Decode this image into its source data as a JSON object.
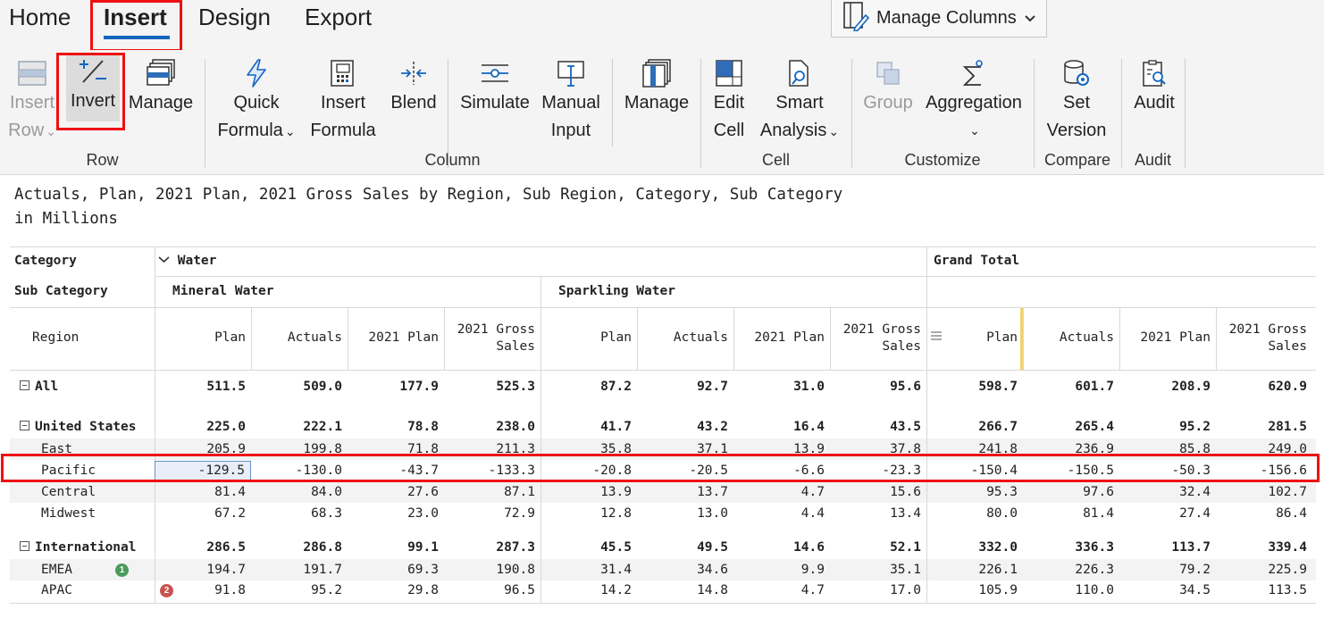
{
  "tabs": [
    "Home",
    "Insert",
    "Design",
    "Export"
  ],
  "active_tab": "Insert",
  "manage_columns_label": "Manage Columns",
  "ribbon": {
    "insert_row": [
      "Insert",
      "Row"
    ],
    "invert": "Invert",
    "manage_row": "Manage",
    "quick_formula": [
      "Quick",
      "Formula"
    ],
    "insert_formula": [
      "Insert",
      "Formula"
    ],
    "blend": "Blend",
    "simulate": "Simulate",
    "manual_input": [
      "Manual",
      "Input"
    ],
    "manage_column": "Manage",
    "edit_cell": [
      "Edit",
      "Cell"
    ],
    "smart_analysis": [
      "Smart",
      "Analysis"
    ],
    "group": "Group",
    "aggregation": "Aggregation",
    "set_version": [
      "Set",
      "Version"
    ],
    "audit": "Audit",
    "groups": {
      "row": "Row",
      "column": "Column",
      "cell": "Cell",
      "customize": "Customize",
      "compare": "Compare",
      "audit": "Audit"
    }
  },
  "report_title": "Actuals, Plan, 2021 Plan, 2021 Gross Sales by Region, Sub Region, Category, Sub Category",
  "report_units": "in Millions",
  "grid": {
    "row_headers": {
      "category": "Category",
      "sub_category": "Sub Category",
      "region": "Region"
    },
    "category_value": "Water",
    "grand_total": "Grand Total",
    "sub_categories": [
      "Mineral Water",
      "Sparkling Water"
    ],
    "measures": [
      "Plan",
      "Actuals",
      "2021 Plan",
      [
        "2021 Gross",
        "Sales"
      ]
    ],
    "rows": [
      {
        "label": "All",
        "bold": true,
        "expander": true,
        "values": [
          "511.5",
          "509.0",
          "177.9",
          "525.3",
          "87.2",
          "92.7",
          "31.0",
          "95.6",
          "598.7",
          "601.7",
          "208.9",
          "620.9"
        ]
      },
      {
        "label": "United States",
        "bold": true,
        "expander": true,
        "values": [
          "225.0",
          "222.1",
          "78.8",
          "238.0",
          "41.7",
          "43.2",
          "16.4",
          "43.5",
          "266.7",
          "265.4",
          "95.2",
          "281.5"
        ]
      },
      {
        "label": "East",
        "values": [
          "205.9",
          "199.8",
          "71.8",
          "211.3",
          "35.8",
          "37.1",
          "13.9",
          "37.8",
          "241.8",
          "236.9",
          "85.8",
          "249.0"
        ]
      },
      {
        "label": "Pacific",
        "values": [
          "-129.5",
          "-130.0",
          "-43.7",
          "-133.3",
          "-20.8",
          "-20.5",
          "-6.6",
          "-23.3",
          "-150.4",
          "-150.5",
          "-50.3",
          "-156.6"
        ]
      },
      {
        "label": "Central",
        "values": [
          "81.4",
          "84.0",
          "27.6",
          "87.1",
          "13.9",
          "13.7",
          "4.7",
          "15.6",
          "95.3",
          "97.6",
          "32.4",
          "102.7"
        ]
      },
      {
        "label": "Midwest",
        "values": [
          "67.2",
          "68.3",
          "23.0",
          "72.9",
          "12.8",
          "13.0",
          "4.4",
          "13.4",
          "80.0",
          "81.4",
          "27.4",
          "86.4"
        ]
      },
      {
        "label": "International",
        "bold": true,
        "expander": true,
        "values": [
          "286.5",
          "286.8",
          "99.1",
          "287.3",
          "45.5",
          "49.5",
          "14.6",
          "52.1",
          "332.0",
          "336.3",
          "113.7",
          "339.4"
        ]
      },
      {
        "label": "EMEA",
        "badge": "1",
        "values": [
          "194.7",
          "191.7",
          "69.3",
          "190.8",
          "31.4",
          "34.6",
          "9.9",
          "35.1",
          "226.1",
          "226.3",
          "79.2",
          "225.9"
        ]
      },
      {
        "label": "APAC",
        "badge": "2",
        "values": [
          "91.8",
          "95.2",
          "29.8",
          "96.5",
          "14.2",
          "14.8",
          "4.7",
          "17.0",
          "105.9",
          "110.0",
          "34.5",
          "113.5"
        ]
      }
    ]
  },
  "colors": {
    "accent": "#1565c0",
    "highlight": "#e11111",
    "badge_green": "#4a9a5c",
    "badge_red": "#c9534f",
    "column_marker": "#f0d36a"
  }
}
